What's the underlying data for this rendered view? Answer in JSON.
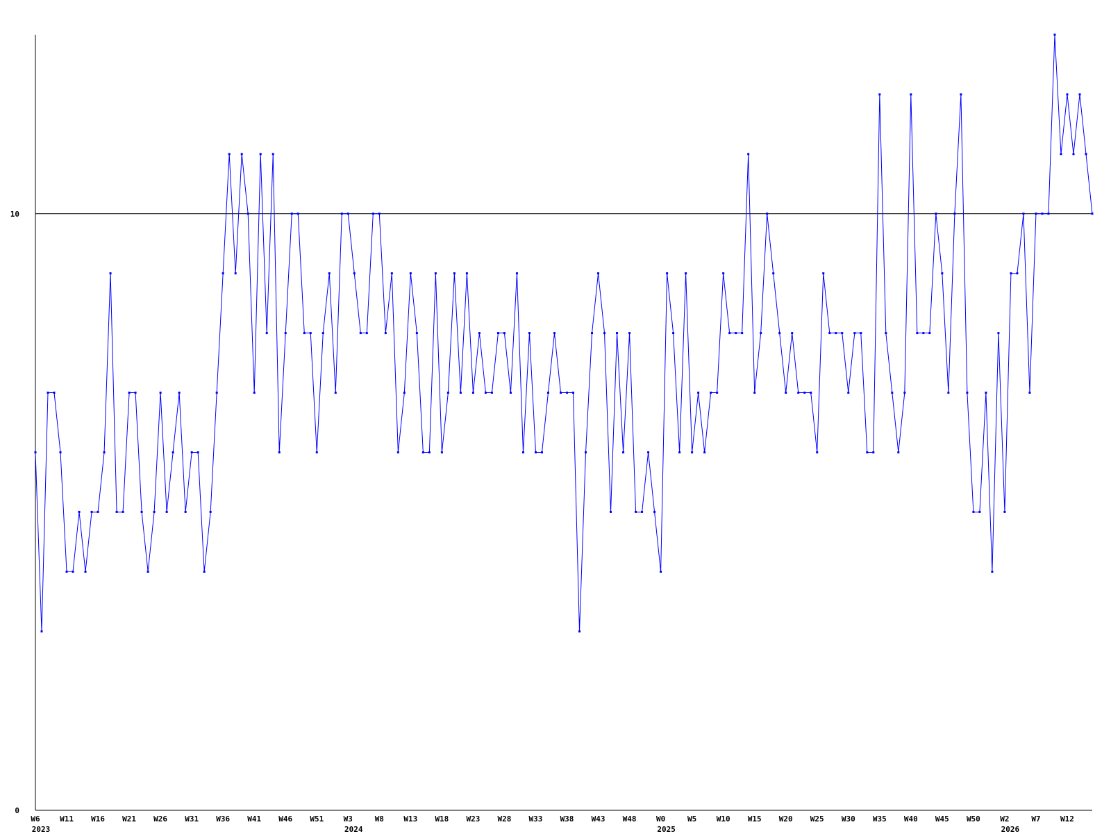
{
  "chart_data": {
    "type": "line",
    "categories": [
      "W6",
      null,
      null,
      null,
      null,
      "W11",
      null,
      null,
      null,
      null,
      "W16",
      null,
      null,
      null,
      null,
      "W21",
      null,
      null,
      null,
      null,
      "W26",
      null,
      null,
      null,
      null,
      "W31",
      null,
      null,
      null,
      null,
      "W36",
      null,
      null,
      null,
      null,
      "W41",
      null,
      null,
      null,
      null,
      "W46",
      null,
      null,
      null,
      null,
      "W51",
      null,
      null,
      null,
      null,
      "W3",
      null,
      null,
      null,
      null,
      "W8",
      null,
      null,
      null,
      null,
      "W13",
      null,
      null,
      null,
      null,
      "W18",
      null,
      null,
      null,
      null,
      "W23",
      null,
      null,
      null,
      null,
      "W28",
      null,
      null,
      null,
      null,
      "W33",
      null,
      null,
      null,
      null,
      "W38",
      null,
      null,
      null,
      null,
      "W43",
      null,
      null,
      null,
      null,
      "W48",
      null,
      null,
      null,
      null,
      "W0",
      null,
      null,
      null,
      null,
      "W5",
      null,
      null,
      null,
      null,
      "W10",
      null,
      null,
      null,
      null,
      "W15",
      null,
      null,
      null,
      null,
      "W20",
      null,
      null,
      null,
      null,
      "W25",
      null,
      null,
      null,
      null,
      "W30",
      null,
      null,
      null,
      null,
      "W35",
      null,
      null,
      null,
      null,
      "W40",
      null,
      null,
      null,
      null,
      "W45",
      null,
      null,
      null,
      null,
      "W50",
      null,
      null,
      null,
      null,
      "W2",
      null,
      null,
      null,
      null,
      "W7",
      null,
      null,
      null,
      null,
      "W12",
      null,
      null,
      null,
      null
    ],
    "years": [
      "2023",
      null,
      null,
      null,
      null,
      null,
      null,
      null,
      null,
      null,
      null,
      null,
      null,
      null,
      null,
      null,
      null,
      null,
      null,
      null,
      null,
      null,
      null,
      null,
      null,
      null,
      null,
      null,
      null,
      null,
      null,
      null,
      null,
      null,
      null,
      null,
      null,
      null,
      null,
      null,
      null,
      null,
      null,
      null,
      null,
      null,
      null,
      null,
      null,
      null,
      "2024",
      null,
      null,
      null,
      null,
      null,
      null,
      null,
      null,
      null,
      null,
      null,
      null,
      null,
      null,
      null,
      null,
      null,
      null,
      null,
      null,
      null,
      null,
      null,
      null,
      null,
      null,
      null,
      null,
      null,
      null,
      null,
      null,
      null,
      null,
      null,
      null,
      null,
      null,
      null,
      null,
      null,
      null,
      null,
      null,
      null,
      null,
      null,
      null,
      null,
      "2025",
      null,
      null,
      null,
      null,
      null,
      null,
      null,
      null,
      null,
      null,
      null,
      null,
      null,
      null,
      null,
      null,
      null,
      null,
      null,
      null,
      null,
      null,
      null,
      null,
      null,
      null,
      null,
      null,
      null,
      null,
      null,
      null,
      null,
      null,
      null,
      null,
      null,
      null,
      null,
      null,
      null,
      null,
      null,
      null,
      null,
      null,
      null,
      null,
      null,
      null,
      null,
      null,
      null,
      null,
      "2026",
      null,
      null,
      null,
      null,
      null,
      null,
      null,
      null,
      null,
      null,
      null,
      null,
      null,
      null
    ],
    "series": [
      {
        "color": "#0000ff",
        "values": [
          6,
          3,
          7,
          7,
          6,
          4,
          4,
          5,
          4,
          5,
          5,
          6,
          9,
          5,
          5,
          7,
          7,
          5,
          4,
          5,
          7,
          5,
          6,
          7,
          5,
          6,
          6,
          4,
          5,
          7,
          9,
          11,
          9,
          11,
          10,
          7,
          11,
          8,
          11,
          6,
          8,
          10,
          10,
          8,
          8,
          6,
          8,
          9,
          7,
          10,
          10,
          9,
          8,
          8,
          10,
          10,
          8,
          9,
          6,
          7,
          9,
          8,
          6,
          6,
          9,
          6,
          7,
          9,
          7,
          9,
          7,
          8,
          7,
          7,
          8,
          8,
          7,
          9,
          6,
          8,
          6,
          6,
          7,
          8,
          7,
          7,
          7,
          3,
          6,
          8,
          9,
          8,
          5,
          8,
          6,
          8,
          5,
          5,
          6,
          5,
          4,
          9,
          8,
          6,
          9,
          6,
          7,
          6,
          7,
          7,
          9,
          8,
          8,
          8,
          11,
          7,
          8,
          10,
          9,
          8,
          7,
          8,
          7,
          7,
          7,
          6,
          9,
          8,
          8,
          8,
          7,
          8,
          8,
          6,
          6,
          12,
          8,
          7,
          6,
          7,
          12,
          8,
          8,
          8,
          10,
          9,
          7,
          10,
          12,
          7,
          5,
          5,
          7,
          4,
          8,
          5,
          9,
          9,
          10,
          7,
          10,
          10,
          10,
          13,
          11,
          12,
          11,
          12,
          11,
          10
        ]
      }
    ],
    "ylim": [
      0,
      13
    ],
    "yticks": [
      0,
      10
    ],
    "grid": true
  }
}
